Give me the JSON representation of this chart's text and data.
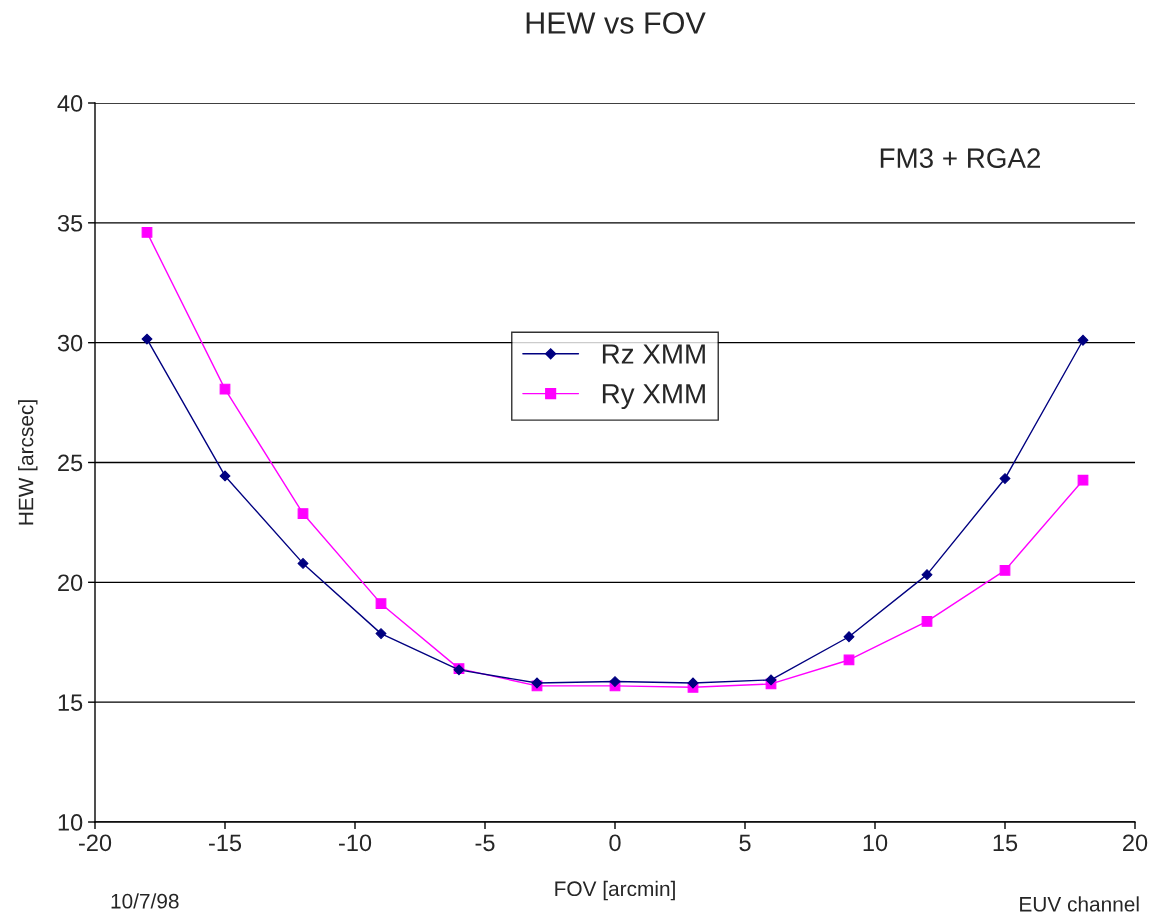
{
  "chart_data": {
    "type": "line",
    "title": "HEW vs FOV",
    "xlabel": "FOV [arcmin]",
    "ylabel": "HEW [arcsec]",
    "x": [
      -18,
      -15,
      -12,
      -9,
      -6,
      -3,
      0,
      3,
      6,
      9,
      12,
      15,
      18
    ],
    "series": [
      {
        "name": "Rz XMM",
        "color": "#000080",
        "marker": "diamond",
        "values": [
          30.15,
          24.44,
          20.79,
          17.86,
          16.35,
          15.8,
          15.86,
          15.8,
          15.93,
          17.73,
          20.32,
          24.33,
          30.1
        ]
      },
      {
        "name": "Ry XMM",
        "color": "#ff00ff",
        "marker": "square",
        "values": [
          34.6,
          28.06,
          22.87,
          19.11,
          16.4,
          15.68,
          15.68,
          15.62,
          15.76,
          16.76,
          18.37,
          20.5,
          24.26
        ]
      }
    ],
    "xlim": [
      -20,
      20
    ],
    "xticks": [
      -20,
      -15,
      -10,
      -5,
      0,
      5,
      10,
      15,
      20
    ],
    "ylim": [
      10,
      40
    ],
    "yticks": [
      10,
      15,
      20,
      25,
      30,
      35,
      40
    ],
    "grid": "y",
    "legend": "center",
    "line_style": "solid",
    "annotations": [
      "FM3 + RGA2",
      "10/7/98",
      "EUV channel"
    ]
  }
}
